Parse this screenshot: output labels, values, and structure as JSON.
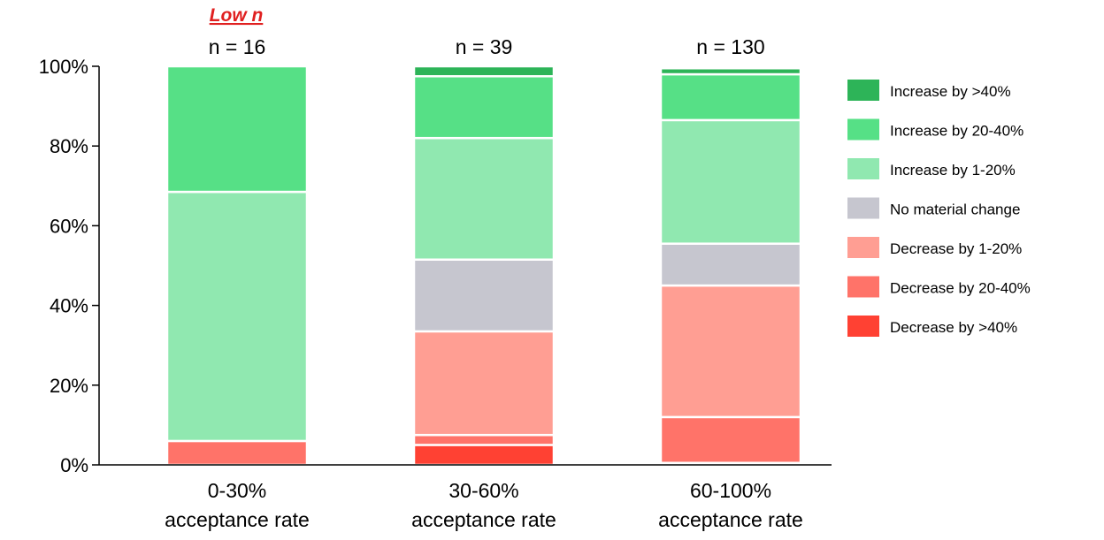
{
  "chart_data": {
    "type": "bar",
    "stacked": true,
    "categories": [
      [
        "0-30%",
        "acceptance rate"
      ],
      [
        "30-60%",
        "acceptance rate"
      ],
      [
        "60-100%",
        "acceptance rate"
      ]
    ],
    "ylim": [
      0,
      100
    ],
    "yticks": [
      "0%",
      "20%",
      "40%",
      "60%",
      "80%",
      "100%"
    ],
    "n_labels": [
      "n = 16",
      "n = 39",
      "n = 130"
    ],
    "annotation": "Low n",
    "series": [
      {
        "name": "Decrease by >40%",
        "color": "#ff4133",
        "values": [
          0,
          5,
          0.5
        ]
      },
      {
        "name": "Decrease by 20-40%",
        "color": "#ff7369",
        "values": [
          6,
          2.5,
          11.5
        ]
      },
      {
        "name": "Decrease by 1-20%",
        "color": "#ff9e93",
        "values": [
          0,
          26,
          33
        ]
      },
      {
        "name": "No material change",
        "color": "#c6c6cf",
        "values": [
          0,
          18,
          10.5
        ]
      },
      {
        "name": "Increase by 1-20%",
        "color": "#90e8b0",
        "values": [
          62.5,
          30.5,
          31
        ]
      },
      {
        "name": "Increase by 20-40%",
        "color": "#56e086",
        "values": [
          31.5,
          15.5,
          11.5
        ]
      },
      {
        "name": "Increase by >40%",
        "color": "#2db458",
        "values": [
          0,
          2.5,
          1.5
        ]
      }
    ],
    "legend_order": [
      "Increase by >40%",
      "Increase by 20-40%",
      "Increase by 1-20%",
      "No material change",
      "Decrease by 1-20%",
      "Decrease by 20-40%",
      "Decrease by >40%"
    ],
    "legend_position": "right"
  }
}
